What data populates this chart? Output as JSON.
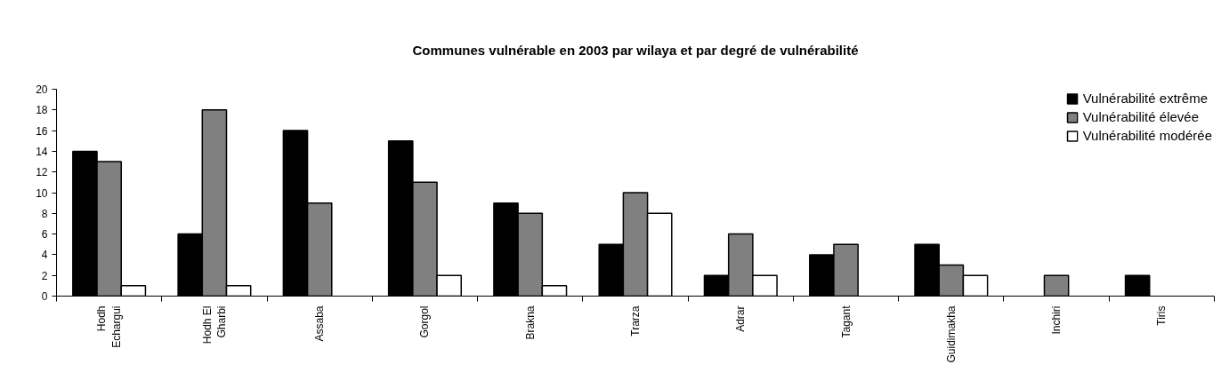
{
  "chart_data": {
    "type": "bar",
    "title": "Communes vulnérable en 2003 par wilaya et par degré de vulnérabilité",
    "categories": [
      "Hodh Echargui",
      "Hodh El Gharbi",
      "Assaba",
      "Gorgol",
      "Brakna",
      "Trarza",
      "Adrar",
      "Tagant",
      "Guidimakha",
      "Inchiri",
      "Tiris"
    ],
    "series": [
      {
        "name": "Vulnérabilité extrême",
        "color": "#000000",
        "values": [
          14,
          6,
          16,
          15,
          9,
          5,
          2,
          4,
          5,
          null,
          2
        ]
      },
      {
        "name": "Vulnérabilité élevée",
        "color": "#808080",
        "values": [
          13,
          18,
          9,
          11,
          8,
          10,
          6,
          5,
          3,
          2,
          null
        ]
      },
      {
        "name": "Vulnérabilité modérée",
        "color": "#ffffff",
        "values": [
          1,
          1,
          null,
          2,
          1,
          8,
          2,
          null,
          2,
          null,
          null
        ]
      }
    ],
    "ylim": [
      0,
      20
    ],
    "yticks": [
      0,
      2,
      4,
      6,
      8,
      10,
      12,
      14,
      16,
      18,
      20
    ],
    "grid": false,
    "legend": "top right"
  }
}
